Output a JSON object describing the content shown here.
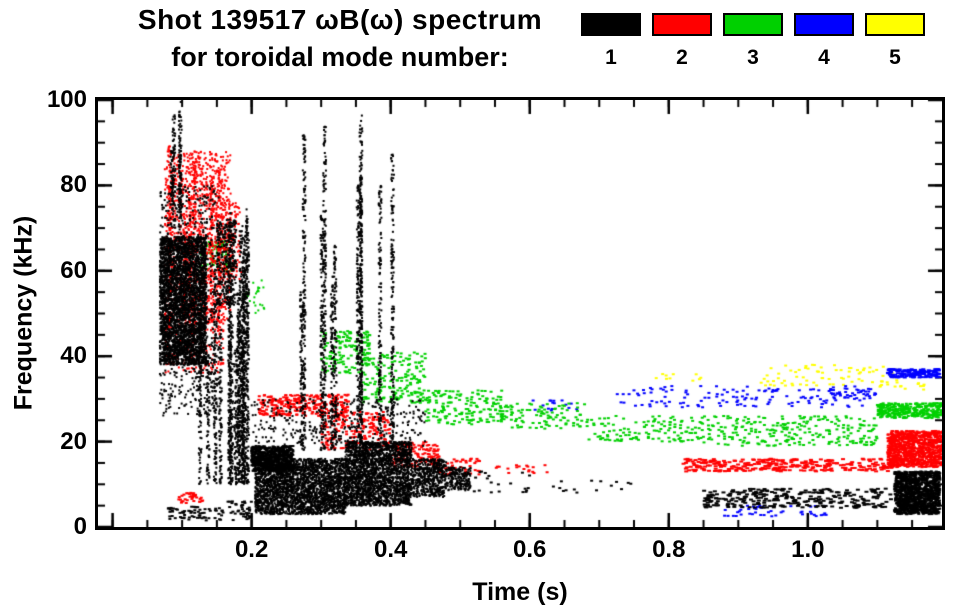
{
  "chart_data": {
    "type": "scatter",
    "title": "Shot 139517 ωB(ω) spectrum",
    "subtitle": "for toroidal mode number:",
    "xlabel": "Time (s)",
    "ylabel": "Frequency (kHz)",
    "xlim": [
      -0.021,
      1.193
    ],
    "ylim": [
      0,
      100
    ],
    "x_major_step": 0.2,
    "x_minor_step": 0.05,
    "y_major_step": 20,
    "y_minor_step": 5,
    "grid": false,
    "legend_position": "top",
    "x_ticks": [
      {
        "value": 0.2,
        "label": "0.2"
      },
      {
        "value": 0.4,
        "label": "0.4"
      },
      {
        "value": 0.6,
        "label": "0.6"
      },
      {
        "value": 0.8,
        "label": "0.8"
      },
      {
        "value": 1.0,
        "label": "1.0"
      }
    ],
    "y_ticks": [
      {
        "value": 0,
        "label": "0"
      },
      {
        "value": 20,
        "label": "20"
      },
      {
        "value": 40,
        "label": "40"
      },
      {
        "value": 60,
        "label": "60"
      },
      {
        "value": 80,
        "label": "80"
      },
      {
        "value": 100,
        "label": "100"
      }
    ],
    "legend": [
      {
        "label": "1",
        "color": "#000000"
      },
      {
        "label": "2",
        "color": "#ff0000"
      },
      {
        "label": "3",
        "color": "#00d000"
      },
      {
        "label": "4",
        "color": "#0000ff"
      },
      {
        "label": "5",
        "color": "#ffff00"
      }
    ],
    "series": [
      {
        "name": "toroidal mode n=1",
        "color": "#000000",
        "seed": 11,
        "clusters": [
          {
            "t": [
              0.068,
              0.135
            ],
            "f": [
              38,
              68
            ],
            "n": 3200,
            "w": 2,
            "h": 2
          },
          {
            "t": [
              0.068,
              0.155
            ],
            "f": [
              26,
              80
            ],
            "n": 700,
            "w": 2,
            "h": 2
          },
          {
            "kind": "s",
            "t": [
              0.082,
              0.1
            ],
            "count": 4,
            "fbase": 70,
            "ftop": [
              88,
              100
            ],
            "w": 2
          },
          {
            "kind": "s",
            "t": [
              0.125,
              0.2
            ],
            "count": 16,
            "fbase": 10,
            "ftop": [
              40,
              75
            ],
            "w": 2
          },
          {
            "t": [
              0.15,
              0.178
            ],
            "f": [
              52,
              72
            ],
            "n": 300,
            "w": 2,
            "h": 2
          },
          {
            "t": [
              0.2,
              0.26
            ],
            "f": [
              13,
              19
            ],
            "n": 600,
            "w": 3,
            "h": 2
          },
          {
            "t": [
              0.205,
              0.335
            ],
            "f": [
              3,
              16
            ],
            "n": 2600,
            "w": 2,
            "h": 2
          },
          {
            "t": [
              0.335,
              0.43
            ],
            "f": [
              5,
              20
            ],
            "n": 2200,
            "w": 2,
            "h": 2
          },
          {
            "t": [
              0.43,
              0.48
            ],
            "f": [
              7,
              16
            ],
            "n": 500,
            "w": 2,
            "h": 2
          },
          {
            "t": [
              0.48,
              0.515
            ],
            "f": [
              8.5,
              14
            ],
            "n": 200,
            "w": 2,
            "h": 2
          },
          {
            "kind": "s",
            "t": [
              0.26,
              0.335
            ],
            "count": 6,
            "fbase": 18,
            "ftop": [
              55,
              97
            ],
            "w": 2
          },
          {
            "kind": "s",
            "t": [
              0.35,
              0.41
            ],
            "count": 5,
            "fbase": 20,
            "ftop": [
              60,
              100
            ],
            "w": 2
          },
          {
            "t": [
              0.2,
              0.45
            ],
            "f": [
              19,
              30
            ],
            "n": 300,
            "w": 2,
            "h": 2
          },
          {
            "t": [
              0.08,
              0.16
            ],
            "f": [
              1.5,
              5
            ],
            "n": 70,
            "w": 3,
            "h": 2
          },
          {
            "t": [
              0.165,
              0.2
            ],
            "f": [
              1.5,
              6
            ],
            "n": 40,
            "w": 3,
            "h": 2
          },
          {
            "t": [
              0.52,
              0.6
            ],
            "f": [
              8,
              13
            ],
            "n": 20,
            "w": 3,
            "h": 2
          },
          {
            "t": [
              0.85,
              1.12
            ],
            "f": [
              4.5,
              9
            ],
            "n": 280,
            "w": 4,
            "h": 2
          },
          {
            "t": [
              1.125,
              1.19
            ],
            "f": [
              3,
              13
            ],
            "n": 1100,
            "w": 3,
            "h": 2
          },
          {
            "t": [
              0.6,
              0.75
            ],
            "f": [
              8,
              11
            ],
            "n": 15,
            "w": 3,
            "h": 2
          }
        ]
      },
      {
        "name": "toroidal mode n=2",
        "color": "#ff0000",
        "seed": 22,
        "clusters": [
          {
            "t": [
              0.075,
              0.17
            ],
            "f": [
              48,
              88
            ],
            "n": 1100,
            "w": 2,
            "h": 2
          },
          {
            "kind": "s",
            "t": [
              0.08,
              0.165
            ],
            "count": 6,
            "fbase": 45,
            "ftop": [
              72,
              92
            ],
            "w": 2
          },
          {
            "t": [
              0.075,
              0.16
            ],
            "f": [
              36,
              48
            ],
            "n": 160,
            "w": 2,
            "h": 2
          },
          {
            "t": [
              0.095,
              0.13
            ],
            "f": [
              5.5,
              8
            ],
            "n": 35,
            "w": 3,
            "h": 2
          },
          {
            "t": [
              0.155,
              0.185
            ],
            "f": [
              58,
              76
            ],
            "n": 140,
            "w": 2,
            "h": 2
          },
          {
            "t": [
              0.21,
              0.34
            ],
            "f": [
              26,
              31
            ],
            "n": 280,
            "w": 3,
            "h": 2
          },
          {
            "t": [
              0.3,
              0.4
            ],
            "f": [
              18,
              27
            ],
            "n": 200,
            "w": 3,
            "h": 2
          },
          {
            "t": [
              0.4,
              0.47
            ],
            "f": [
              14,
              20
            ],
            "n": 140,
            "w": 3,
            "h": 2
          },
          {
            "t": [
              0.47,
              0.53
            ],
            "f": [
              12,
              16
            ],
            "n": 50,
            "w": 3,
            "h": 2
          },
          {
            "t": [
              0.55,
              0.63
            ],
            "f": [
              12.5,
              14.5
            ],
            "n": 18,
            "w": 3,
            "h": 2
          },
          {
            "t": [
              0.82,
              1.125
            ],
            "f": [
              13,
              16
            ],
            "n": 300,
            "w": 4,
            "h": 2
          },
          {
            "t": [
              1.115,
              1.195
            ],
            "f": [
              14,
              22.5
            ],
            "n": 900,
            "w": 3,
            "h": 2
          }
        ]
      },
      {
        "name": "toroidal mode n=3",
        "color": "#00d000",
        "seed": 33,
        "clusters": [
          {
            "t": [
              0.125,
              0.17
            ],
            "f": [
              60,
              67
            ],
            "n": 110,
            "w": 2,
            "h": 2
          },
          {
            "t": [
              0.19,
              0.22
            ],
            "f": [
              50,
              58
            ],
            "n": 25,
            "w": 2,
            "h": 2
          },
          {
            "t": [
              0.3,
              0.37
            ],
            "f": [
              36,
              46
            ],
            "n": 140,
            "w": 3,
            "h": 2
          },
          {
            "t": [
              0.36,
              0.45
            ],
            "f": [
              29,
              41
            ],
            "n": 180,
            "w": 3,
            "h": 2
          },
          {
            "t": [
              0.45,
              0.56
            ],
            "f": [
              24,
              32
            ],
            "n": 160,
            "w": 3,
            "h": 2
          },
          {
            "t": [
              0.56,
              0.68
            ],
            "f": [
              23,
              29
            ],
            "n": 100,
            "w": 3,
            "h": 2
          },
          {
            "t": [
              0.68,
              0.85
            ],
            "f": [
              20,
              26
            ],
            "n": 130,
            "w": 3,
            "h": 2
          },
          {
            "t": [
              0.85,
              1.1
            ],
            "f": [
              19,
              26
            ],
            "n": 240,
            "w": 3,
            "h": 2
          },
          {
            "t": [
              1.1,
              1.195
            ],
            "f": [
              25.5,
              29
            ],
            "n": 320,
            "w": 3,
            "h": 2
          }
        ]
      },
      {
        "name": "toroidal mode n=4",
        "color": "#0000ff",
        "seed": 44,
        "clusters": [
          {
            "t": [
              0.72,
              1.08
            ],
            "f": [
              28,
              33
            ],
            "n": 130,
            "w": 3,
            "h": 2
          },
          {
            "t": [
              1.115,
              1.19
            ],
            "f": [
              35,
              37
            ],
            "n": 140,
            "w": 4,
            "h": 2
          },
          {
            "t": [
              0.88,
              1.03
            ],
            "f": [
              2.5,
              5
            ],
            "n": 45,
            "w": 3,
            "h": 2
          },
          {
            "t": [
              0.6,
              0.67
            ],
            "f": [
              27,
              30
            ],
            "n": 16,
            "w": 3,
            "h": 2
          },
          {
            "t": [
              1.03,
              1.1
            ],
            "f": [
              30,
              32.5
            ],
            "n": 40,
            "w": 3,
            "h": 2
          }
        ]
      },
      {
        "name": "toroidal mode n=5",
        "color": "#ffff00",
        "seed": 55,
        "clusters": [
          {
            "t": [
              0.93,
              1.13
            ],
            "f": [
              33,
              38
            ],
            "n": 70,
            "w": 3,
            "h": 2
          },
          {
            "t": [
              0.78,
              0.85
            ],
            "f": [
              34,
              36
            ],
            "n": 10,
            "w": 3,
            "h": 2
          },
          {
            "t": [
              1.1,
              1.17
            ],
            "f": [
              32,
              34.5
            ],
            "n": 18,
            "w": 3,
            "h": 2
          }
        ]
      }
    ]
  }
}
